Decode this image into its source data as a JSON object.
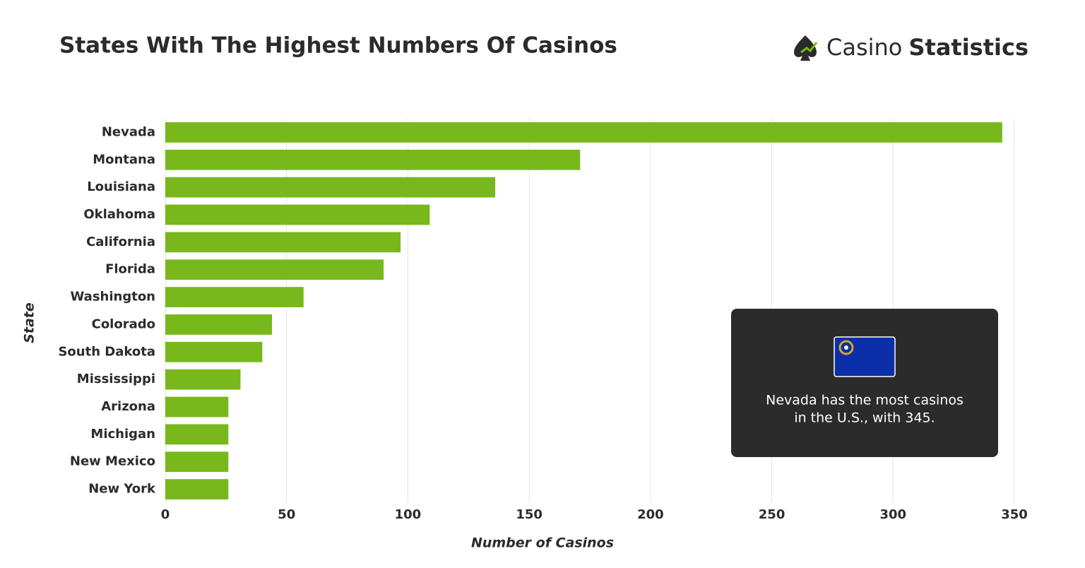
{
  "chart_data": {
    "type": "bar",
    "orientation": "horizontal",
    "title": "States With The Highest Numbers Of Casinos",
    "brand": [
      "Casino",
      "Statistics"
    ],
    "categories": [
      "Nevada",
      "Montana",
      "Louisiana",
      "Oklahoma",
      "California",
      "Florida",
      "Washington",
      "Colorado",
      "South Dakota",
      "Mississippi",
      "Arizona",
      "Michigan",
      "New Mexico",
      "New York"
    ],
    "values": [
      345,
      171,
      136,
      109,
      97,
      90,
      57,
      44,
      40,
      31,
      26,
      26,
      26,
      26
    ],
    "color": "#78b81c",
    "xlim": [
      0,
      350
    ],
    "xticks": [
      0,
      50,
      100,
      150,
      200,
      250,
      300,
      350
    ],
    "x_label": "Number of Casinos",
    "y_label": "State",
    "grid": true,
    "annotation": [
      "Nevada has the most casinos",
      "in the U.S., with 345."
    ]
  }
}
